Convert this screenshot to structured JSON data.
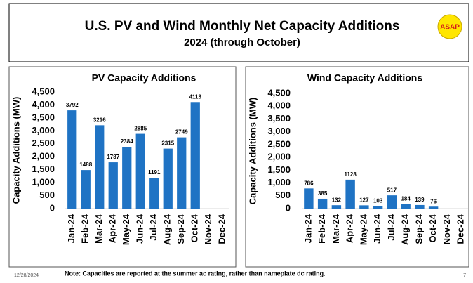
{
  "header": {
    "title": "U.S. PV and Wind Monthly Net Capacity Additions",
    "subtitle": "2024 (through October)",
    "logo": "ASAP"
  },
  "footer": {
    "date": "12/28/2024",
    "note": "Note: Capacities are reported at the summer ac rating, rather than nameplate dc rating.",
    "page": "7"
  },
  "chart_data": [
    {
      "type": "bar",
      "title": "PV Capacity Additions",
      "ylabel": "Capacity Additions (MW)",
      "categories": [
        "Jan-24",
        "Feb-24",
        "Mar-24",
        "Apr-24",
        "May-24",
        "Jun-24",
        "Jul-24",
        "Aug-24",
        "Sep-24",
        "Oct-24",
        "Nov-24",
        "Dec-24"
      ],
      "values": [
        3792,
        1488,
        3216,
        1787,
        2384,
        2885,
        1191,
        2315,
        2749,
        4113,
        null,
        null
      ],
      "color": "#1f73c4",
      "ylim": [
        0,
        4500
      ],
      "yticks": [
        0,
        500,
        {
          "value": 1000,
          "label": "1,000"
        },
        {
          "value": 1500,
          "label": "1,500"
        },
        {
          "value": 2000,
          "label": "2,000"
        },
        {
          "value": 2500,
          "label": "2,500"
        },
        {
          "value": 3000,
          "label": "3,000"
        },
        {
          "value": 3500,
          "label": "3,500"
        },
        {
          "value": 4000,
          "label": "4,000"
        },
        {
          "value": 4500,
          "label": "4,500"
        }
      ]
    },
    {
      "type": "bar",
      "title": "Wind Capacity Additions",
      "ylabel": "Capacity Additions (MW)",
      "categories": [
        "Jan-24",
        "Feb-24",
        "Mar-24",
        "Apr-24",
        "May-24",
        "Jun-24",
        "Jul-24",
        "Aug-24",
        "Sep-24",
        "Oct-24",
        "Nov-24",
        "Dec-24"
      ],
      "values": [
        786,
        385,
        132,
        1128,
        127,
        103,
        517,
        184,
        139,
        76,
        null,
        null
      ],
      "color": "#1f73c4",
      "ylim": [
        0,
        4500
      ],
      "yticks": [
        0,
        500,
        {
          "value": 1000,
          "label": "1,000"
        },
        {
          "value": 1500,
          "label": "1,500"
        },
        {
          "value": 2000,
          "label": "2,000"
        },
        {
          "value": 2500,
          "label": "2,500"
        },
        {
          "value": 3000,
          "label": "3,000"
        },
        {
          "value": 3500,
          "label": "3,500"
        },
        {
          "value": 4000,
          "label": "4,000"
        },
        {
          "value": 4500,
          "label": "4,500"
        }
      ]
    }
  ]
}
